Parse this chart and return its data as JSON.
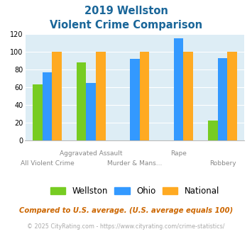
{
  "title_line1": "2019 Wellston",
  "title_line2": "Violent Crime Comparison",
  "groups": {
    "Wellston": [
      63,
      88,
      null,
      null,
      22
    ],
    "Ohio": [
      77,
      65,
      92,
      115,
      93
    ],
    "National": [
      100,
      100,
      100,
      100,
      100
    ]
  },
  "colors": {
    "Wellston": "#77cc22",
    "Ohio": "#3399ff",
    "National": "#ffaa22"
  },
  "ylim": [
    0,
    120
  ],
  "yticks": [
    0,
    20,
    40,
    60,
    80,
    100,
    120
  ],
  "footnote1": "Compared to U.S. average. (U.S. average equals 100)",
  "footnote2": "© 2025 CityRating.com - https://www.cityrating.com/crime-statistics/",
  "title_color": "#1a6699",
  "footnote1_color": "#cc6600",
  "footnote2_color": "#aaaaaa",
  "bg_color": "#ddedf5",
  "bar_width": 0.22
}
